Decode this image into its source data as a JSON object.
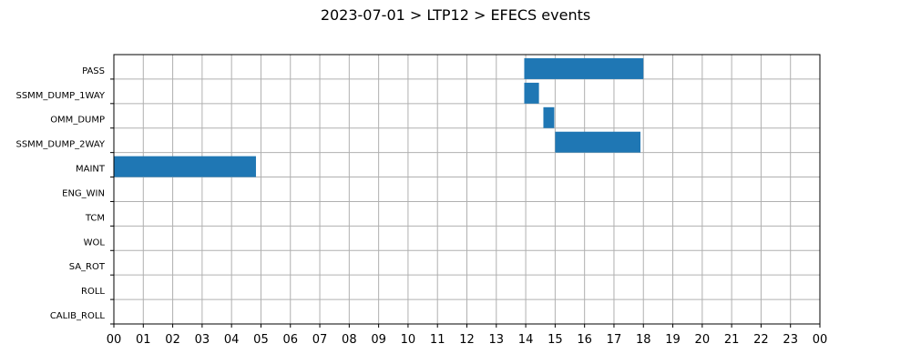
{
  "chart_data": {
    "type": "bar",
    "orientation": "horizontal-timeline",
    "title": "2023-07-01 > LTP12 > EFECS events",
    "xlabel": "",
    "ylabel": "",
    "x_unit": "hours",
    "xlim": [
      0,
      24
    ],
    "x_tick_labels": [
      "00",
      "01",
      "02",
      "03",
      "04",
      "05",
      "06",
      "07",
      "08",
      "09",
      "10",
      "11",
      "12",
      "13",
      "14",
      "15",
      "16",
      "17",
      "18",
      "19",
      "20",
      "21",
      "22",
      "23",
      "00"
    ],
    "categories": [
      "PASS",
      "SSMM_DUMP_1WAY",
      "OMM_DUMP",
      "SSMM_DUMP_2WAY",
      "MAINT",
      "ENG_WIN",
      "TCM",
      "WOL",
      "SA_ROT",
      "ROLL",
      "CALIB_ROLL"
    ],
    "grid": true,
    "bar_color": "#1f77b4",
    "intervals": [
      {
        "category": "PASS",
        "start": 13.95,
        "end": 18.0
      },
      {
        "category": "SSMM_DUMP_1WAY",
        "start": 13.95,
        "end": 14.45
      },
      {
        "category": "OMM_DUMP",
        "start": 14.6,
        "end": 14.97
      },
      {
        "category": "SSMM_DUMP_2WAY",
        "start": 15.0,
        "end": 17.9
      },
      {
        "category": "MAINT",
        "start": 0.0,
        "end": 4.83
      }
    ]
  }
}
